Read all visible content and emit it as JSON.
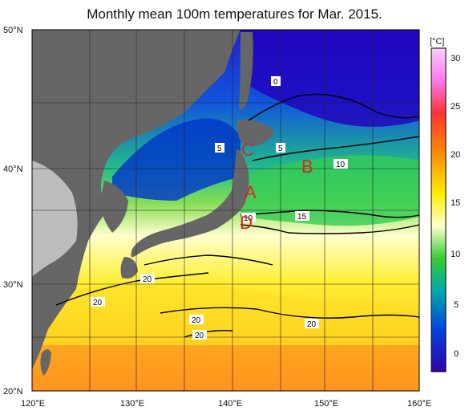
{
  "title": "Monthly mean 100m temperatures for Mar. 2015.",
  "colorbar": {
    "unit": "[°C]",
    "ticks": [
      "30",
      "25",
      "20",
      "15",
      "10",
      "5",
      "0"
    ],
    "colors": [
      "#ff99ff",
      "#ff3333",
      "#ff8800",
      "#ffee00",
      "#ffffcc",
      "#33cc33",
      "#00aaaa",
      "#0033cc",
      "#3300aa"
    ]
  },
  "axes": {
    "lat_labels": [
      "50°N",
      "40°N",
      "30°N",
      "20°N"
    ],
    "lon_labels": [
      "120°E",
      "130°E",
      "140°E",
      "150°E",
      "160°E"
    ]
  },
  "markers": [
    "A",
    "B",
    "C",
    "D"
  ],
  "contour_labels": [
    "0",
    "5",
    "5",
    "10",
    "10",
    "15",
    "20",
    "20",
    "20",
    "20",
    "20"
  ]
}
